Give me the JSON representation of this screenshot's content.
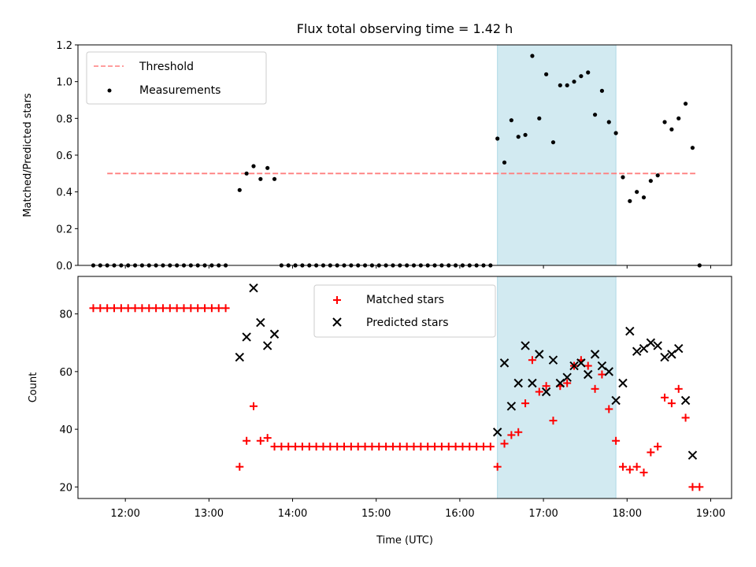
{
  "colors": {
    "band": "#add8e6",
    "threshold": "#ff7f7f",
    "measurement": "#000000",
    "matched": "#ff0000",
    "predicted": "#000000"
  },
  "chart_data": [
    {
      "type": "scatter",
      "title": "Flux total observing time = 1.42 h",
      "xlabel": "",
      "ylabel": "Matched/Predicted stars",
      "xlim": [
        "11:26",
        "19:15"
      ],
      "ylim": [
        0,
        1.2
      ],
      "y_ticks": [
        "0.0",
        "0.2",
        "0.4",
        "0.6",
        "0.8",
        "1.0",
        "1.2"
      ],
      "x_ticks": [
        "12:00",
        "13:00",
        "14:00",
        "15:00",
        "16:00",
        "17:00",
        "18:00",
        "19:00"
      ],
      "show_x_tick_labels": false,
      "grid": false,
      "legend_position": "upper-left",
      "highlight_band": [
        "16:27",
        "17:52"
      ],
      "threshold": {
        "name": "Threshold",
        "y": 0.5,
        "x_range": [
          "11:47",
          "18:49"
        ],
        "style": "dashed"
      },
      "series": [
        {
          "name": "Measurements",
          "marker": "dot",
          "points": [
            [
              "11:37",
              0
            ],
            [
              "11:42",
              0
            ],
            [
              "11:47",
              0
            ],
            [
              "11:52",
              0
            ],
            [
              "11:57",
              0
            ],
            [
              "12:02",
              0
            ],
            [
              "12:07",
              0
            ],
            [
              "12:12",
              0
            ],
            [
              "12:17",
              0
            ],
            [
              "12:22",
              0
            ],
            [
              "12:27",
              0
            ],
            [
              "12:32",
              0
            ],
            [
              "12:37",
              0
            ],
            [
              "12:42",
              0
            ],
            [
              "12:47",
              0
            ],
            [
              "12:52",
              0
            ],
            [
              "12:57",
              0
            ],
            [
              "13:02",
              0
            ],
            [
              "13:07",
              0
            ],
            [
              "13:12",
              0
            ],
            [
              "13:22",
              0.41
            ],
            [
              "13:27",
              0.5
            ],
            [
              "13:32",
              0.54
            ],
            [
              "13:37",
              0.47
            ],
            [
              "13:42",
              0.53
            ],
            [
              "13:47",
              0.47
            ],
            [
              "13:52",
              0
            ],
            [
              "13:57",
              0
            ],
            [
              "14:02",
              0
            ],
            [
              "14:07",
              0
            ],
            [
              "14:12",
              0
            ],
            [
              "14:17",
              0
            ],
            [
              "14:22",
              0
            ],
            [
              "14:27",
              0
            ],
            [
              "14:32",
              0
            ],
            [
              "14:37",
              0
            ],
            [
              "14:42",
              0
            ],
            [
              "14:47",
              0
            ],
            [
              "14:52",
              0
            ],
            [
              "14:57",
              0
            ],
            [
              "15:02",
              0
            ],
            [
              "15:07",
              0
            ],
            [
              "15:12",
              0
            ],
            [
              "15:17",
              0
            ],
            [
              "15:22",
              0
            ],
            [
              "15:27",
              0
            ],
            [
              "15:32",
              0
            ],
            [
              "15:37",
              0
            ],
            [
              "15:42",
              0
            ],
            [
              "15:47",
              0
            ],
            [
              "15:52",
              0
            ],
            [
              "15:57",
              0
            ],
            [
              "16:02",
              0
            ],
            [
              "16:07",
              0
            ],
            [
              "16:12",
              0
            ],
            [
              "16:17",
              0
            ],
            [
              "16:22",
              0
            ],
            [
              "16:27",
              0.69
            ],
            [
              "16:32",
              0.56
            ],
            [
              "16:37",
              0.79
            ],
            [
              "16:42",
              0.7
            ],
            [
              "16:47",
              0.71
            ],
            [
              "16:52",
              1.14
            ],
            [
              "16:57",
              0.8
            ],
            [
              "17:02",
              1.04
            ],
            [
              "17:07",
              0.67
            ],
            [
              "17:12",
              0.98
            ],
            [
              "17:17",
              0.98
            ],
            [
              "17:22",
              1.0
            ],
            [
              "17:27",
              1.03
            ],
            [
              "17:32",
              1.05
            ],
            [
              "17:37",
              0.82
            ],
            [
              "17:42",
              0.95
            ],
            [
              "17:47",
              0.78
            ],
            [
              "17:52",
              0.72
            ],
            [
              "17:57",
              0.48
            ],
            [
              "18:02",
              0.35
            ],
            [
              "18:07",
              0.4
            ],
            [
              "18:12",
              0.37
            ],
            [
              "18:17",
              0.46
            ],
            [
              "18:22",
              0.49
            ],
            [
              "18:27",
              0.78
            ],
            [
              "18:32",
              0.74
            ],
            [
              "18:37",
              0.8
            ],
            [
              "18:42",
              0.88
            ],
            [
              "18:47",
              0.64
            ],
            [
              "18:52",
              0
            ]
          ]
        }
      ]
    },
    {
      "type": "scatter",
      "title": "",
      "xlabel": "Time (UTC)",
      "ylabel": "Count",
      "xlim": [
        "11:26",
        "19:15"
      ],
      "ylim": [
        16,
        93
      ],
      "y_ticks": [
        "20",
        "40",
        "60",
        "80"
      ],
      "x_ticks": [
        "12:00",
        "13:00",
        "14:00",
        "15:00",
        "16:00",
        "17:00",
        "18:00",
        "19:00"
      ],
      "show_x_tick_labels": true,
      "grid": false,
      "legend_position": "upper-center",
      "highlight_band": [
        "16:27",
        "17:52"
      ],
      "series": [
        {
          "name": "Matched stars",
          "marker": "plus",
          "points": [
            [
              "11:37",
              82
            ],
            [
              "11:42",
              82
            ],
            [
              "11:47",
              82
            ],
            [
              "11:52",
              82
            ],
            [
              "11:57",
              82
            ],
            [
              "12:02",
              82
            ],
            [
              "12:07",
              82
            ],
            [
              "12:12",
              82
            ],
            [
              "12:17",
              82
            ],
            [
              "12:22",
              82
            ],
            [
              "12:27",
              82
            ],
            [
              "12:32",
              82
            ],
            [
              "12:37",
              82
            ],
            [
              "12:42",
              82
            ],
            [
              "12:47",
              82
            ],
            [
              "12:52",
              82
            ],
            [
              "12:57",
              82
            ],
            [
              "13:02",
              82
            ],
            [
              "13:07",
              82
            ],
            [
              "13:12",
              82
            ],
            [
              "13:22",
              27
            ],
            [
              "13:27",
              36
            ],
            [
              "13:32",
              48
            ],
            [
              "13:37",
              36
            ],
            [
              "13:42",
              37
            ],
            [
              "13:47",
              34
            ],
            [
              "13:52",
              34
            ],
            [
              "13:57",
              34
            ],
            [
              "14:02",
              34
            ],
            [
              "14:07",
              34
            ],
            [
              "14:12",
              34
            ],
            [
              "14:17",
              34
            ],
            [
              "14:22",
              34
            ],
            [
              "14:27",
              34
            ],
            [
              "14:32",
              34
            ],
            [
              "14:37",
              34
            ],
            [
              "14:42",
              34
            ],
            [
              "14:47",
              34
            ],
            [
              "14:52",
              34
            ],
            [
              "14:57",
              34
            ],
            [
              "15:02",
              34
            ],
            [
              "15:07",
              34
            ],
            [
              "15:12",
              34
            ],
            [
              "15:17",
              34
            ],
            [
              "15:22",
              34
            ],
            [
              "15:27",
              34
            ],
            [
              "15:32",
              34
            ],
            [
              "15:37",
              34
            ],
            [
              "15:42",
              34
            ],
            [
              "15:47",
              34
            ],
            [
              "15:52",
              34
            ],
            [
              "15:57",
              34
            ],
            [
              "16:02",
              34
            ],
            [
              "16:07",
              34
            ],
            [
              "16:12",
              34
            ],
            [
              "16:17",
              34
            ],
            [
              "16:22",
              34
            ],
            [
              "16:27",
              27
            ],
            [
              "16:32",
              35
            ],
            [
              "16:37",
              38
            ],
            [
              "16:42",
              39
            ],
            [
              "16:47",
              49
            ],
            [
              "16:52",
              64
            ],
            [
              "16:57",
              53
            ],
            [
              "17:02",
              55
            ],
            [
              "17:07",
              43
            ],
            [
              "17:12",
              55
            ],
            [
              "17:17",
              56
            ],
            [
              "17:22",
              62
            ],
            [
              "17:27",
              64
            ],
            [
              "17:32",
              62
            ],
            [
              "17:37",
              54
            ],
            [
              "17:42",
              59
            ],
            [
              "17:47",
              47
            ],
            [
              "17:52",
              36
            ],
            [
              "17:57",
              27
            ],
            [
              "18:02",
              26
            ],
            [
              "18:07",
              27
            ],
            [
              "18:12",
              25
            ],
            [
              "18:17",
              32
            ],
            [
              "18:22",
              34
            ],
            [
              "18:27",
              51
            ],
            [
              "18:32",
              49
            ],
            [
              "18:37",
              54
            ],
            [
              "18:42",
              44
            ],
            [
              "18:47",
              20
            ],
            [
              "18:52",
              20
            ]
          ]
        },
        {
          "name": "Predicted stars",
          "marker": "x",
          "points": [
            [
              "13:22",
              65
            ],
            [
              "13:27",
              72
            ],
            [
              "13:32",
              89
            ],
            [
              "13:37",
              77
            ],
            [
              "13:42",
              69
            ],
            [
              "13:47",
              73
            ],
            [
              "16:27",
              39
            ],
            [
              "16:32",
              63
            ],
            [
              "16:37",
              48
            ],
            [
              "16:42",
              56
            ],
            [
              "16:47",
              69
            ],
            [
              "16:52",
              56
            ],
            [
              "16:57",
              66
            ],
            [
              "17:02",
              53
            ],
            [
              "17:07",
              64
            ],
            [
              "17:12",
              56
            ],
            [
              "17:17",
              58
            ],
            [
              "17:22",
              62
            ],
            [
              "17:27",
              63
            ],
            [
              "17:32",
              59
            ],
            [
              "17:37",
              66
            ],
            [
              "17:42",
              62
            ],
            [
              "17:47",
              60
            ],
            [
              "17:52",
              50
            ],
            [
              "17:57",
              56
            ],
            [
              "18:02",
              74
            ],
            [
              "18:07",
              67
            ],
            [
              "18:12",
              68
            ],
            [
              "18:17",
              70
            ],
            [
              "18:22",
              69
            ],
            [
              "18:27",
              65
            ],
            [
              "18:32",
              66
            ],
            [
              "18:37",
              68
            ],
            [
              "18:42",
              50
            ],
            [
              "18:47",
              31
            ]
          ]
        }
      ]
    }
  ]
}
